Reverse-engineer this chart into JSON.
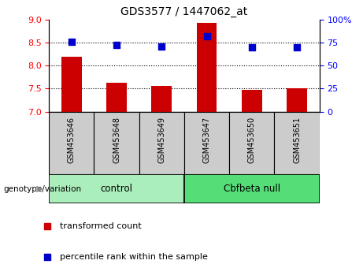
{
  "title": "GDS3577 / 1447062_at",
  "samples": [
    "GSM453646",
    "GSM453648",
    "GSM453649",
    "GSM453647",
    "GSM453650",
    "GSM453651"
  ],
  "bar_values": [
    8.2,
    7.62,
    7.56,
    8.93,
    7.47,
    7.5
  ],
  "percentile_values": [
    75.5,
    72.0,
    70.5,
    82.0,
    70.0,
    70.0
  ],
  "bar_color": "#cc0000",
  "dot_color": "#0000cc",
  "ylim_left": [
    7.0,
    9.0
  ],
  "ylim_right": [
    0,
    100
  ],
  "yticks_left": [
    7.0,
    7.5,
    8.0,
    8.5,
    9.0
  ],
  "yticks_right": [
    0,
    25,
    50,
    75,
    100
  ],
  "ytick_labels_right": [
    "0",
    "25",
    "50",
    "75",
    "100%"
  ],
  "groups": [
    {
      "label": "control",
      "indices": [
        0,
        1,
        2
      ],
      "color": "#aaeebb"
    },
    {
      "label": "Cbfbeta null",
      "indices": [
        3,
        4,
        5
      ],
      "color": "#55dd77"
    }
  ],
  "group_label_prefix": "genotype/variation",
  "legend_items": [
    {
      "label": "transformed count",
      "color": "#cc0000",
      "marker": "s"
    },
    {
      "label": "percentile rank within the sample",
      "color": "#0000cc",
      "marker": "s"
    }
  ],
  "bar_width": 0.45,
  "dot_size": 35,
  "background_xtick": "#cccccc",
  "bar_bottom": 7.0,
  "grid_yticks": [
    7.5,
    8.0,
    8.5
  ]
}
